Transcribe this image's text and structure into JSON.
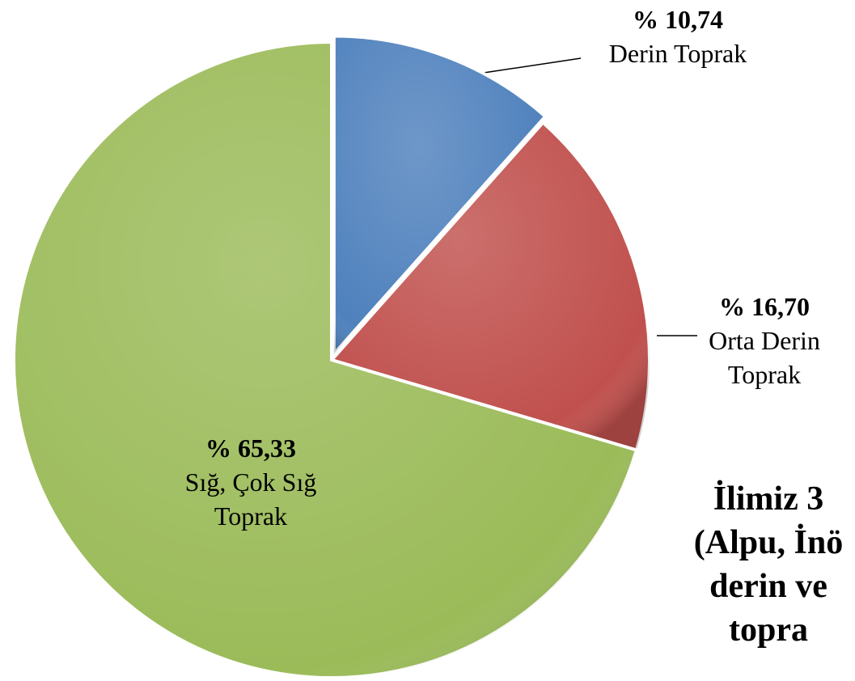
{
  "chart_data": {
    "type": "pie",
    "categories": [
      "Derin Toprak",
      "Orta Derin Toprak",
      "Sığ, Çok Sığ Toprak"
    ],
    "values": [
      10.74,
      16.7,
      65.33
    ],
    "value_labels": [
      "% 10,74",
      "% 16,70",
      "% 65,33"
    ],
    "colors": [
      "#4f81bd",
      "#c0504d",
      "#9bbb59"
    ],
    "annotation": [
      "İlimiz 3",
      "(Alpu, İnö",
      "derin ve",
      "topra"
    ]
  }
}
